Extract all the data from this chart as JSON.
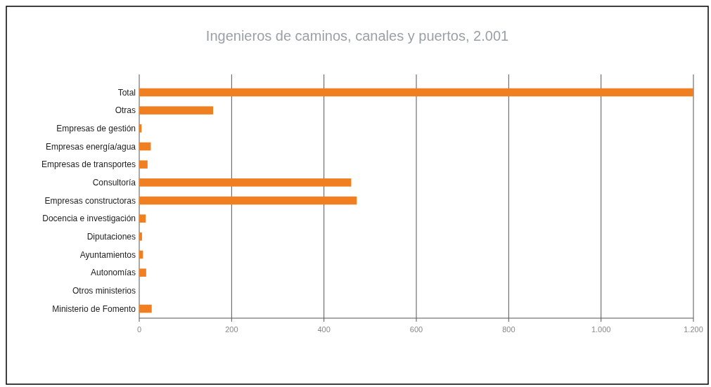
{
  "chart_data": {
    "type": "bar",
    "orientation": "horizontal",
    "title": "Ingenieros de caminos, canales y puertos, 2.001",
    "categories": [
      "Total",
      "Otras",
      "Empresas de gestión",
      "Empresas energía/agua",
      "Empresas de transportes",
      "Consultoría",
      "Empresas constructoras",
      "Docencia e investigación",
      "Diputaciones",
      "Ayuntamientos",
      "Autonomías",
      "Otros ministerios",
      "Ministerio de Fomento"
    ],
    "values": [
      1200,
      160,
      5,
      25,
      18,
      459,
      471,
      14,
      6,
      8,
      15,
      0,
      27
    ],
    "color": "#f07f22",
    "xlim": [
      0,
      1200
    ],
    "xticks": [
      0,
      200,
      400,
      600,
      800,
      {
        "value": 1000,
        "label": "1.000"
      },
      {
        "value": 1200,
        "label": "1.200"
      }
    ],
    "grid": "x"
  }
}
